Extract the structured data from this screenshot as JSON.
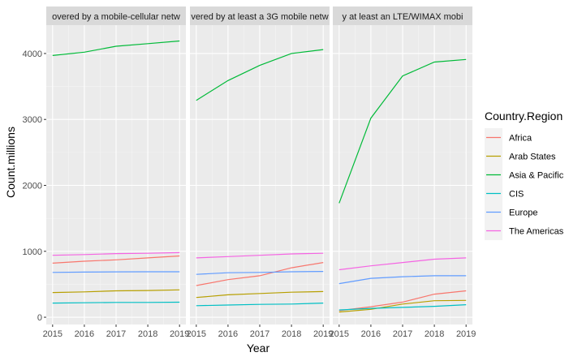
{
  "chart_data": {
    "type": "line",
    "xlabel": "Year",
    "ylabel": "Count.millions",
    "ylim": [
      -110,
      4430
    ],
    "xlim": [
      2014.8,
      2019.2
    ],
    "x_ticks": [
      "2015",
      "2016",
      "2017",
      "2018",
      "2019"
    ],
    "y_ticks": [
      "0",
      "1000",
      "2000",
      "3000",
      "4000"
    ],
    "grid": true,
    "legend": {
      "title": "Country.Region",
      "position": "right",
      "entries": [
        "Africa",
        "Arab States",
        "Asia & Pacific",
        "CIS",
        "Europe",
        "The Americas"
      ]
    },
    "colors": {
      "Africa": "#F8766D",
      "Arab States": "#B79F00",
      "Asia & Pacific": "#00BA38",
      "CIS": "#00BFC4",
      "Europe": "#619CFF",
      "The Americas": "#F564E3"
    },
    "x": [
      2015,
      2016,
      2017,
      2018,
      2019
    ],
    "panels": [
      {
        "strip": "overed by a mobile-cellular netw",
        "series": [
          {
            "name": "Africa",
            "values": [
              820,
              850,
              870,
              900,
              930
            ]
          },
          {
            "name": "Arab States",
            "values": [
              375,
              385,
              400,
              405,
              415
            ]
          },
          {
            "name": "Asia & Pacific",
            "values": [
              3970,
              4020,
              4110,
              4150,
              4190
            ]
          },
          {
            "name": "CIS",
            "values": [
              215,
              220,
              225,
              225,
              228
            ]
          },
          {
            "name": "Europe",
            "values": [
              680,
              685,
              688,
              690,
              690
            ]
          },
          {
            "name": "The Americas",
            "values": [
              940,
              950,
              965,
              970,
              980
            ]
          }
        ]
      },
      {
        "strip": "vered by at least a 3G mobile netw",
        "series": [
          {
            "name": "Africa",
            "values": [
              480,
              570,
              630,
              750,
              830
            ]
          },
          {
            "name": "Arab States",
            "values": [
              300,
              340,
              360,
              380,
              390
            ]
          },
          {
            "name": "Asia & Pacific",
            "values": [
              3290,
              3590,
              3820,
              4000,
              4060
            ]
          },
          {
            "name": "CIS",
            "values": [
              175,
              185,
              195,
              200,
              215
            ]
          },
          {
            "name": "Europe",
            "values": [
              650,
              675,
              680,
              690,
              695
            ]
          },
          {
            "name": "The Americas",
            "values": [
              900,
              920,
              940,
              960,
              970
            ]
          }
        ]
      },
      {
        "strip": "y at least an LTE/WIMAX mobi",
        "series": [
          {
            "name": "Africa",
            "values": [
              100,
              160,
              230,
              350,
              400
            ]
          },
          {
            "name": "Arab States",
            "values": [
              80,
              120,
              200,
              250,
              255
            ]
          },
          {
            "name": "Asia & Pacific",
            "values": [
              1730,
              3020,
              3660,
              3870,
              3910
            ]
          },
          {
            "name": "CIS",
            "values": [
              110,
              135,
              150,
              165,
              190
            ]
          },
          {
            "name": "Europe",
            "values": [
              510,
              590,
              615,
              630,
              630
            ]
          },
          {
            "name": "The Americas",
            "values": [
              720,
              780,
              830,
              880,
              900
            ]
          }
        ]
      }
    ]
  }
}
